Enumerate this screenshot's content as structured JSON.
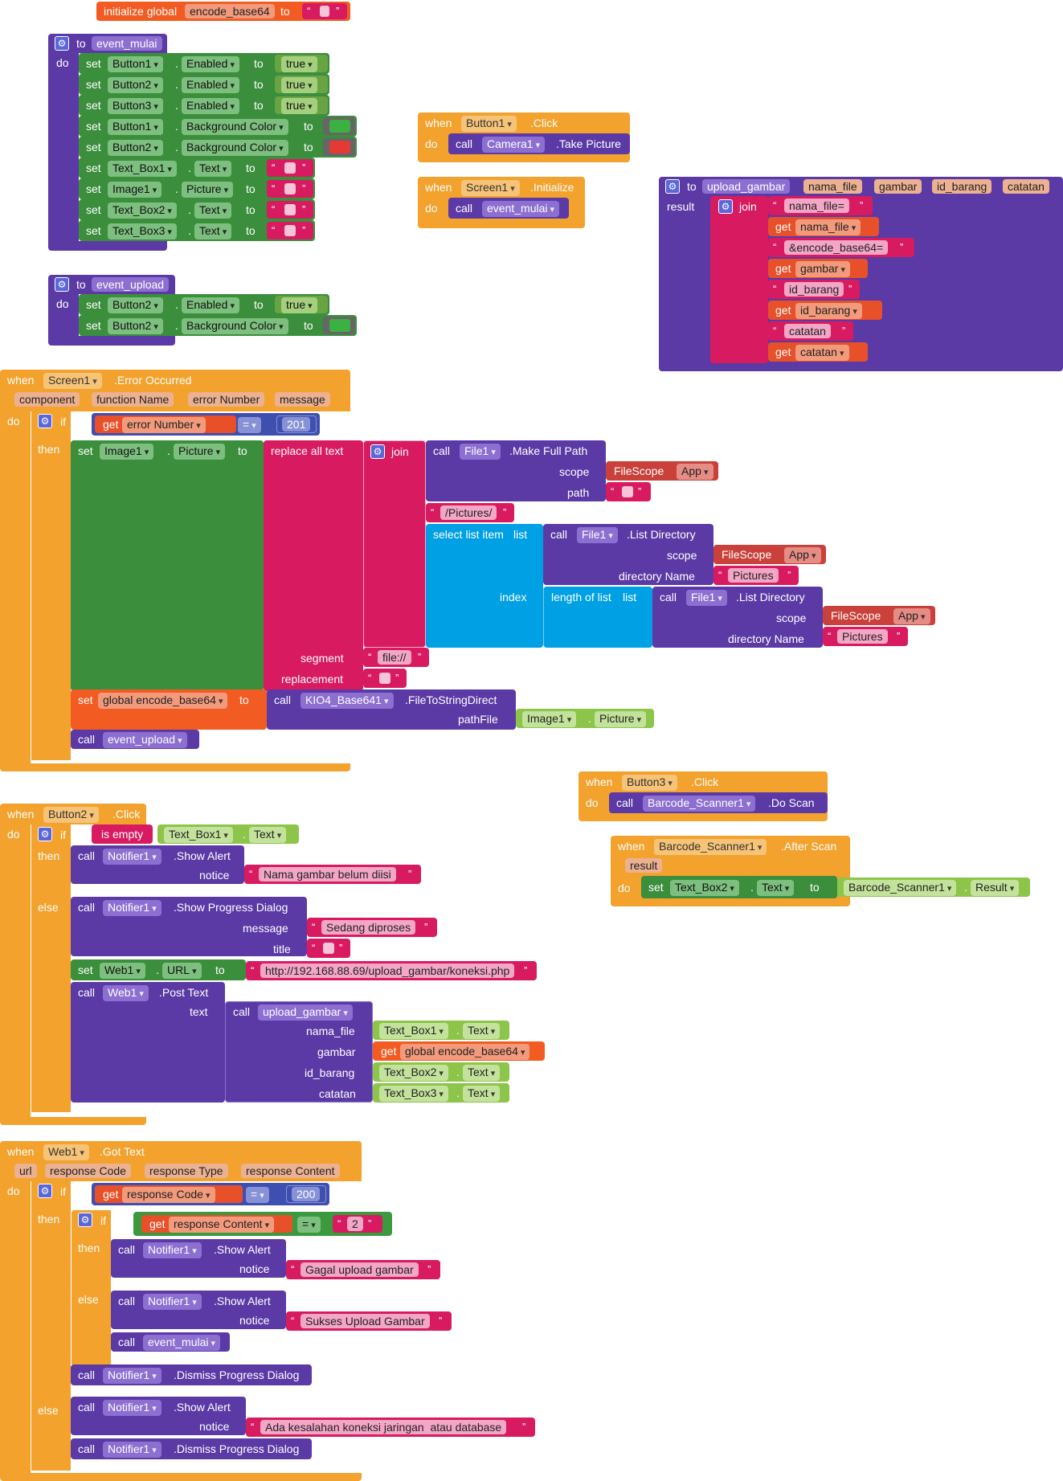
{
  "kw": {
    "initialize_global": "initialize global",
    "to": "to",
    "do": "do",
    "set": "set",
    "when": "when",
    "call": "call",
    "get": "get",
    "if": "if",
    "then": "then",
    "else": "else",
    "result": "result",
    "join": "join",
    "dot": ".",
    "eq": "=",
    "is_empty": "is empty",
    "true": "true",
    "replace_all_text": "replace all text",
    "segment": "segment",
    "replacement": "replacement",
    "select_list_item": "select list item",
    "list": "list",
    "index": "index",
    "length_of_list": "length of list",
    "scope": "scope",
    "path": "path",
    "directory_name": "directory Name",
    "path_file": "pathFile",
    "notice": "notice",
    "message": "message",
    "title": "title",
    "text": "text",
    "url_param": "url"
  },
  "global_var": {
    "name": "encode_base64"
  },
  "procs": {
    "event_mulai": "event_mulai",
    "event_upload": "event_upload",
    "upload_gambar": "upload_gambar"
  },
  "components": {
    "Button1": "Button1",
    "Button2": "Button2",
    "Button3": "Button3",
    "Text_Box1": "Text_Box1",
    "Text_Box2": "Text_Box2",
    "Text_Box3": "Text_Box3",
    "Image1": "Image1",
    "Camera1": "Camera1",
    "Screen1": "Screen1",
    "File1": "File1",
    "KIO4": "KIO4_Base641",
    "Web1": "Web1",
    "Notifier1": "Notifier1",
    "Scanner": "Barcode_Scanner1"
  },
  "props": {
    "enabled": "Enabled",
    "bgcolor": "Background Color",
    "text": "Text",
    "picture": "Picture",
    "url": "URL",
    "result": "Result"
  },
  "events": {
    "click": ".Click",
    "initialize": ".Initialize",
    "error": ".Error Occurred",
    "got_text": ".Got Text",
    "after_scan": ".After Scan"
  },
  "methods": {
    "take_picture": ".Take Picture",
    "make_full_path": ".Make Full Path",
    "list_directory": ".List Directory",
    "file_to_string": ".FileToStringDirect",
    "show_alert": ".Show Alert",
    "show_progress": ".Show Progress Dialog",
    "post_text": ".Post Text",
    "do_scan": ".Do Scan",
    "dismiss_progress": ".Dismiss Progress Dialog"
  },
  "params": {
    "nama_file": "nama_file",
    "gambar": "gambar",
    "id_barang": "id_barang",
    "catatan": "catatan",
    "component": "component",
    "function_name": "function Name",
    "error_number": "error Number",
    "message": "message",
    "response_code": "response Code",
    "response_type": "response Type",
    "response_content": "response Content"
  },
  "strings": {
    "nama_file_eq": "nama_file=",
    "encode_base64_eq": "&encode_base64=",
    "id_barang_s": "id_barang",
    "catatan_s": "catatan",
    "pictures_path": "/Pictures/",
    "pictures": "Pictures",
    "file_prefix": "file://",
    "nama_gambar_belum": "Nama gambar belum diisi",
    "sedang_diproses": "Sedang diproses",
    "url_value": "http://192.168.88.69/upload_gambar/koneksi.php",
    "two": "2",
    "gagal": "Gagal upload gambar",
    "sukses": "Sukses Upload Gambar",
    "ada_kesalahan": "Ada kesalahan koneksi jaringan  atau database"
  },
  "numbers": {
    "n201": "201",
    "n200": "200"
  },
  "filescope": {
    "label": "FileScope",
    "value": "App"
  },
  "global_ref": "global encode_base64",
  "colors": {
    "event": "#f2a22d",
    "procedure": "#5b3aa6",
    "setter": "#3b8e3c",
    "getter": "#8dc44a",
    "text": "#d81b60",
    "variable": "#e8502a",
    "list": "#00a1e4",
    "math": "#3f4fb0",
    "green_swatch": "#3cb043",
    "red_swatch": "#e53935"
  }
}
